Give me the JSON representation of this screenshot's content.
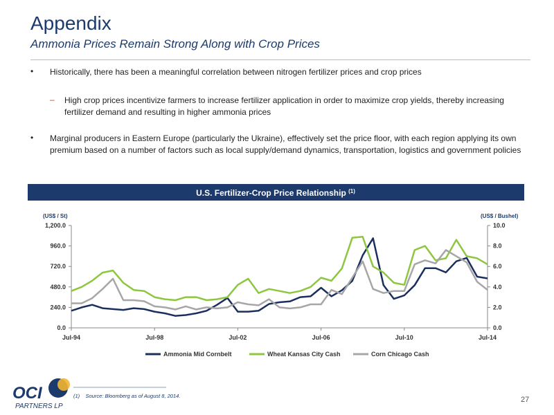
{
  "header": {
    "title": "Appendix",
    "subtitle": "Ammonia Prices Remain Strong Along with Crop Prices"
  },
  "bullets": [
    {
      "text": "Historically, there has been a meaningful correlation between nitrogen fertilizer prices and crop prices",
      "sub": [
        "High crop prices incentivize farmers to increase fertilizer application in order to maximize crop yields, thereby increasing fertilizer demand and resulting in higher ammonia prices"
      ]
    },
    {
      "text": "Marginal producers in Eastern Europe (particularly the Ukraine), effectively set the price floor, with each region applying its own premium based on a number of factors such as local supply/demand dynamics, transportation, logistics and government policies"
    }
  ],
  "chart_data": {
    "type": "line",
    "title": "U.S. Fertilizer-Crop Price Relationship",
    "title_note": "(1)",
    "y_label": "(US$ / St)",
    "y2_label": "(US$ / Bushel)",
    "x": [
      1994.5,
      1995,
      1995.5,
      1996,
      1996.5,
      1997,
      1997.5,
      1998,
      1998.5,
      1999,
      1999.5,
      2000,
      2000.5,
      2001,
      2001.5,
      2002,
      2002.5,
      2003,
      2003.5,
      2004,
      2004.5,
      2005,
      2005.5,
      2006,
      2006.5,
      2007,
      2007.5,
      2008,
      2008.5,
      2009,
      2009.5,
      2010,
      2010.5,
      2011,
      2011.5,
      2012,
      2012.5,
      2013,
      2013.5,
      2014,
      2014.5
    ],
    "xlim": [
      1994.5,
      2014.5
    ],
    "xticks": [
      {
        "value": 1994.5,
        "label": "Jul-94"
      },
      {
        "value": 1998.5,
        "label": "Jul-98"
      },
      {
        "value": 2002.5,
        "label": "Jul-02"
      },
      {
        "value": 2006.5,
        "label": "Jul-06"
      },
      {
        "value": 2010.5,
        "label": "Jul-10"
      },
      {
        "value": 2014.5,
        "label": "Jul-14"
      }
    ],
    "ylim": [
      0,
      1200
    ],
    "yticks": [
      {
        "value": 0,
        "label": "0.0"
      },
      {
        "value": 240,
        "label": "240.0"
      },
      {
        "value": 480,
        "label": "480.0"
      },
      {
        "value": 720,
        "label": "720.0"
      },
      {
        "value": 960,
        "label": "960.0"
      },
      {
        "value": 1200,
        "label": "1,200.0"
      }
    ],
    "y2lim": [
      0,
      10
    ],
    "y2ticks": [
      {
        "value": 0,
        "label": "0.0"
      },
      {
        "value": 2,
        "label": "2.0"
      },
      {
        "value": 4,
        "label": "4.0"
      },
      {
        "value": 6,
        "label": "6.0"
      },
      {
        "value": 8,
        "label": "8.0"
      },
      {
        "value": 10,
        "label": "10.0"
      }
    ],
    "legend": "bottom",
    "series": [
      {
        "name": "Ammonia Mid Cornbelt",
        "color": "#1b2f5e",
        "values": [
          200,
          240,
          270,
          230,
          220,
          210,
          230,
          220,
          190,
          170,
          140,
          150,
          170,
          200,
          270,
          350,
          190,
          190,
          200,
          280,
          300,
          310,
          360,
          370,
          470,
          370,
          440,
          550,
          850,
          1050,
          500,
          340,
          380,
          500,
          700,
          700,
          650,
          780,
          820,
          600,
          580
        ]
      },
      {
        "name": "Wheat Kansas City Cash",
        "color": "#8dc63f",
        "axis": "y2",
        "values": [
          3.6,
          4.0,
          4.6,
          5.4,
          5.6,
          4.4,
          3.7,
          3.6,
          3.0,
          2.8,
          2.7,
          3.0,
          3.0,
          2.7,
          2.8,
          3.0,
          4.2,
          4.8,
          3.4,
          3.8,
          3.6,
          3.4,
          3.6,
          4.0,
          4.9,
          4.6,
          5.8,
          8.8,
          8.9,
          6.0,
          5.4,
          4.4,
          4.2,
          7.6,
          8.0,
          6.6,
          6.8,
          8.6,
          7.0,
          6.8,
          6.2
        ]
      },
      {
        "name": "Corn Chicago Cash",
        "color": "#a6a6a6",
        "axis": "y2",
        "values": [
          2.4,
          2.4,
          2.9,
          3.8,
          4.8,
          2.7,
          2.7,
          2.6,
          2.1,
          2.0,
          1.8,
          2.1,
          1.8,
          2.0,
          1.9,
          2.0,
          2.5,
          2.3,
          2.2,
          2.8,
          2.0,
          1.9,
          2.0,
          2.3,
          2.3,
          3.7,
          3.3,
          4.9,
          6.5,
          3.8,
          3.4,
          3.6,
          3.6,
          6.2,
          6.6,
          6.3,
          7.6,
          7.0,
          6.4,
          4.5,
          3.7
        ]
      }
    ]
  },
  "footnote": {
    "marker": "(1)",
    "text": "Source: Bloomberg as of August 8, 2014."
  },
  "page_number": "27",
  "logo": {
    "name": "OCI",
    "tagline": "PARTNERS LP"
  }
}
